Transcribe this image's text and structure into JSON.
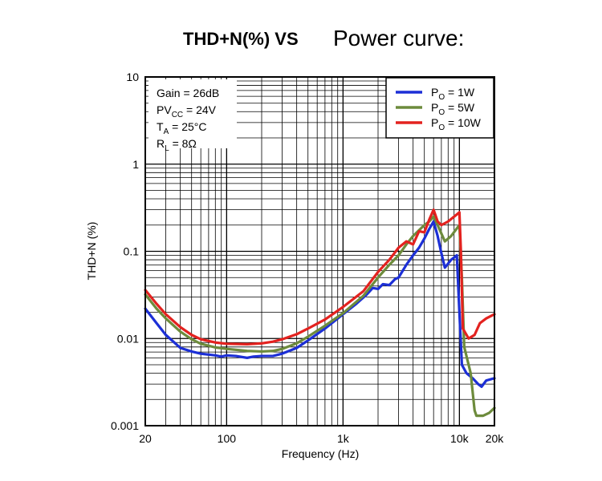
{
  "heading": {
    "bold": "THD+N(%) VS",
    "plain": "Power curve:"
  },
  "chart_data": {
    "type": "line",
    "title": "",
    "xlabel": "Frequency (Hz)",
    "ylabel": "THD+N (%)",
    "xscale": "log",
    "yscale": "log",
    "xlim": [
      20,
      20000
    ],
    "ylim": [
      0.001,
      10
    ],
    "grid": true,
    "legend_position": "top-right",
    "x_ticks": [
      {
        "value": 20,
        "label": "20"
      },
      {
        "value": 100,
        "label": "100"
      },
      {
        "value": 1000,
        "label": "1k"
      },
      {
        "value": 10000,
        "label": "10k"
      },
      {
        "value": 20000,
        "label": "20k"
      }
    ],
    "y_ticks": [
      {
        "value": 0.001,
        "label": "0.001"
      },
      {
        "value": 0.01,
        "label": "0.01"
      },
      {
        "value": 0.1,
        "label": "0.1"
      },
      {
        "value": 1,
        "label": "1"
      },
      {
        "value": 10,
        "label": "10"
      }
    ],
    "conditions": [
      {
        "label": "Gain = 26dB",
        "base": "Gain = 26dB",
        "sub": "",
        "rest": ""
      },
      {
        "label": "PVCC = 24V",
        "base": "PV",
        "sub": "CC",
        "rest": " = 24V"
      },
      {
        "label": "TA = 25°C",
        "base": "T",
        "sub": "A",
        "rest": " = 25°C"
      },
      {
        "label": "RL = 8Ω",
        "base": "R",
        "sub": "L",
        "rest": " = 8Ω"
      }
    ],
    "series": [
      {
        "name": "PO = 1W",
        "legend_base": "P",
        "legend_sub": "O",
        "legend_rest": " = 1W",
        "color": "#1c2fd6",
        "points": [
          [
            20,
            0.022
          ],
          [
            25,
            0.015
          ],
          [
            30,
            0.011
          ],
          [
            40,
            0.0078
          ],
          [
            50,
            0.0071
          ],
          [
            60,
            0.0067
          ],
          [
            80,
            0.0064
          ],
          [
            90,
            0.0062
          ],
          [
            100,
            0.0064
          ],
          [
            120,
            0.0063
          ],
          [
            150,
            0.006
          ],
          [
            170,
            0.0062
          ],
          [
            200,
            0.0063
          ],
          [
            250,
            0.0063
          ],
          [
            300,
            0.0067
          ],
          [
            400,
            0.0078
          ],
          [
            500,
            0.0095
          ],
          [
            700,
            0.013
          ],
          [
            1000,
            0.019
          ],
          [
            1300,
            0.025
          ],
          [
            1600,
            0.032
          ],
          [
            1800,
            0.038
          ],
          [
            2000,
            0.037
          ],
          [
            2200,
            0.042
          ],
          [
            2500,
            0.041
          ],
          [
            2800,
            0.048
          ],
          [
            3000,
            0.05
          ],
          [
            3500,
            0.07
          ],
          [
            4000,
            0.09
          ],
          [
            4500,
            0.11
          ],
          [
            5000,
            0.14
          ],
          [
            5500,
            0.18
          ],
          [
            6000,
            0.22
          ],
          [
            6500,
            0.15
          ],
          [
            7000,
            0.095
          ],
          [
            7500,
            0.065
          ],
          [
            8500,
            0.08
          ],
          [
            9500,
            0.09
          ],
          [
            10000,
            0.02
          ],
          [
            10500,
            0.005
          ],
          [
            11500,
            0.004
          ],
          [
            13000,
            0.0035
          ],
          [
            14500,
            0.003
          ],
          [
            15500,
            0.0028
          ],
          [
            17000,
            0.0033
          ],
          [
            20000,
            0.0035
          ]
        ]
      },
      {
        "name": "PO = 5W",
        "legend_base": "P",
        "legend_sub": "O",
        "legend_rest": " = 5W",
        "color": "#6d8b3c",
        "points": [
          [
            20,
            0.032
          ],
          [
            25,
            0.022
          ],
          [
            30,
            0.017
          ],
          [
            40,
            0.012
          ],
          [
            50,
            0.0098
          ],
          [
            60,
            0.0087
          ],
          [
            80,
            0.0079
          ],
          [
            100,
            0.0076
          ],
          [
            150,
            0.0072
          ],
          [
            200,
            0.0071
          ],
          [
            250,
            0.0072
          ],
          [
            300,
            0.0076
          ],
          [
            400,
            0.0088
          ],
          [
            500,
            0.0105
          ],
          [
            700,
            0.014
          ],
          [
            1000,
            0.0195
          ],
          [
            1500,
            0.031
          ],
          [
            2000,
            0.05
          ],
          [
            2500,
            0.07
          ],
          [
            3000,
            0.09
          ],
          [
            3500,
            0.12
          ],
          [
            4000,
            0.15
          ],
          [
            5000,
            0.2
          ],
          [
            5500,
            0.22
          ],
          [
            6000,
            0.25
          ],
          [
            6500,
            0.2
          ],
          [
            7000,
            0.16
          ],
          [
            7500,
            0.13
          ],
          [
            8500,
            0.15
          ],
          [
            10000,
            0.2
          ],
          [
            10500,
            0.05
          ],
          [
            11000,
            0.008
          ],
          [
            12500,
            0.004
          ],
          [
            13500,
            0.0015
          ],
          [
            14000,
            0.0013
          ],
          [
            16000,
            0.0013
          ],
          [
            18000,
            0.0014
          ],
          [
            20000,
            0.0016
          ]
        ]
      },
      {
        "name": "PO = 10W",
        "legend_base": "P",
        "legend_sub": "O",
        "legend_rest": " = 10W",
        "color": "#e3221f",
        "points": [
          [
            20,
            0.036
          ],
          [
            25,
            0.025
          ],
          [
            30,
            0.019
          ],
          [
            40,
            0.0135
          ],
          [
            50,
            0.011
          ],
          [
            60,
            0.0098
          ],
          [
            80,
            0.009
          ],
          [
            100,
            0.0087
          ],
          [
            150,
            0.0086
          ],
          [
            200,
            0.0088
          ],
          [
            250,
            0.0092
          ],
          [
            300,
            0.0098
          ],
          [
            400,
            0.0112
          ],
          [
            500,
            0.013
          ],
          [
            700,
            0.0165
          ],
          [
            1000,
            0.023
          ],
          [
            1500,
            0.035
          ],
          [
            2000,
            0.058
          ],
          [
            2500,
            0.08
          ],
          [
            3000,
            0.11
          ],
          [
            3500,
            0.13
          ],
          [
            4000,
            0.12
          ],
          [
            4500,
            0.17
          ],
          [
            5000,
            0.165
          ],
          [
            5500,
            0.23
          ],
          [
            6000,
            0.3
          ],
          [
            6500,
            0.22
          ],
          [
            7000,
            0.2
          ],
          [
            8000,
            0.22
          ],
          [
            9000,
            0.25
          ],
          [
            10000,
            0.28
          ],
          [
            10300,
            0.1
          ],
          [
            10700,
            0.013
          ],
          [
            12000,
            0.01
          ],
          [
            13500,
            0.011
          ],
          [
            15000,
            0.015
          ],
          [
            17000,
            0.017
          ],
          [
            20000,
            0.019
          ]
        ]
      }
    ]
  }
}
